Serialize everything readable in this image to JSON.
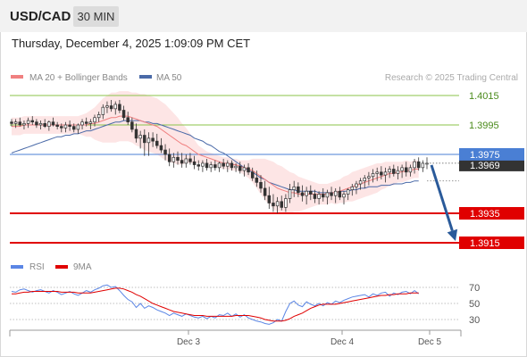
{
  "header": {
    "symbol": "USD/CAD",
    "timeframe": "30 MIN",
    "timestamp": "Thursday, December 4, 2025 1:09:09 PM CET"
  },
  "legend": {
    "bollinger": "MA 20 + Bollinger Bands",
    "ma50": "MA 50",
    "rsi": "RSI",
    "rsi_ma": "9MA"
  },
  "credit": "Research © 2025 Trading Central",
  "colors": {
    "bollinger": "#f08080",
    "bollinger_fill": "#fde0e0",
    "ma50": "#4a6aa8",
    "resistance": "#8bc34a",
    "support": "#e00000",
    "pivot": "#4a7fd4",
    "price_box": "#333333",
    "arrow": "#2a5a9a",
    "rsi": "#5b86e5",
    "rsi_ma": "#e00000"
  },
  "chart_data": [
    {
      "type": "candlestick",
      "title": "USD/CAD",
      "ylim": [
        1.3908,
        1.4026
      ],
      "x_tick_labels": [
        "Dec 3",
        "Dec 4",
        "Dec 5"
      ],
      "levels": [
        {
          "value": 1.4015,
          "label": "1.4015",
          "kind": "resistance"
        },
        {
          "value": 1.3995,
          "label": "1.3995",
          "kind": "resistance"
        },
        {
          "value": 1.3975,
          "label": "1.3975",
          "kind": "pivot"
        },
        {
          "value": 1.3935,
          "label": "1.3935",
          "kind": "support"
        },
        {
          "value": 1.3915,
          "label": "1.3915",
          "kind": "support"
        }
      ],
      "last_price": {
        "value": 1.3969,
        "label": "1.3969"
      },
      "forecast_arrow": {
        "from": 1.3969,
        "to": 1.3915,
        "direction": "down"
      },
      "candles": [
        [
          1.3997,
          1.3999,
          1.3994,
          1.3996
        ],
        [
          1.3996,
          1.3999,
          1.3993,
          1.3997
        ],
        [
          1.3997,
          1.4,
          1.3994,
          1.3995
        ],
        [
          1.3995,
          1.3998,
          1.3992,
          1.3996
        ],
        [
          1.3996,
          1.4,
          1.3993,
          1.3998
        ],
        [
          1.3998,
          1.4001,
          1.3995,
          1.3997
        ],
        [
          1.3997,
          1.3999,
          1.3993,
          1.3995
        ],
        [
          1.3995,
          1.3998,
          1.3992,
          1.3996
        ],
        [
          1.3996,
          1.3999,
          1.3993,
          1.3994
        ],
        [
          1.3994,
          1.3998,
          1.3991,
          1.3997
        ],
        [
          1.3997,
          1.4,
          1.3994,
          1.3995
        ],
        [
          1.3995,
          1.3997,
          1.3992,
          1.3994
        ],
        [
          1.3994,
          1.3996,
          1.399,
          1.3993
        ],
        [
          1.3993,
          1.3997,
          1.399,
          1.3995
        ],
        [
          1.3995,
          1.3998,
          1.3991,
          1.3994
        ],
        [
          1.3994,
          1.3996,
          1.399,
          1.3992
        ],
        [
          1.3992,
          1.3996,
          1.3989,
          1.3995
        ],
        [
          1.3995,
          1.3999,
          1.3992,
          1.3997
        ],
        [
          1.3997,
          1.4,
          1.3994,
          1.3996
        ],
        [
          1.3996,
          1.3999,
          1.3992,
          1.3997
        ],
        [
          1.3997,
          1.4002,
          1.3994,
          1.4
        ],
        [
          1.4,
          1.4004,
          1.3997,
          1.4002
        ],
        [
          1.4002,
          1.4009,
          1.3999,
          1.4007
        ],
        [
          1.4007,
          1.4011,
          1.4003,
          1.4008
        ],
        [
          1.4008,
          1.4012,
          1.4004,
          1.4006
        ],
        [
          1.4006,
          1.4011,
          1.4002,
          1.4009
        ],
        [
          1.4009,
          1.4012,
          1.4003,
          1.4005
        ],
        [
          1.4005,
          1.4008,
          1.3998,
          1.4
        ],
        [
          1.4,
          1.4004,
          1.3995,
          1.3997
        ],
        [
          1.3997,
          1.4,
          1.399,
          1.3992
        ],
        [
          1.3992,
          1.3996,
          1.3983,
          1.3986
        ],
        [
          1.3986,
          1.3991,
          1.3979,
          1.3988
        ],
        [
          1.3988,
          1.3992,
          1.3974,
          1.3983
        ],
        [
          1.3983,
          1.399,
          1.3974,
          1.3986
        ],
        [
          1.3986,
          1.399,
          1.398,
          1.3984
        ],
        [
          1.3984,
          1.3989,
          1.3979,
          1.3981
        ],
        [
          1.3981,
          1.3986,
          1.3976,
          1.3978
        ],
        [
          1.3978,
          1.3982,
          1.3971,
          1.3975
        ],
        [
          1.3975,
          1.3979,
          1.3967,
          1.397
        ],
        [
          1.397,
          1.3976,
          1.3966,
          1.3973
        ],
        [
          1.3973,
          1.3977,
          1.3968,
          1.3971
        ],
        [
          1.3971,
          1.3976,
          1.3966,
          1.3969
        ],
        [
          1.3969,
          1.3975,
          1.3966,
          1.3972
        ],
        [
          1.3972,
          1.3976,
          1.3968,
          1.397
        ],
        [
          1.397,
          1.3974,
          1.3965,
          1.3968
        ],
        [
          1.3968,
          1.3971,
          1.3964,
          1.3967
        ],
        [
          1.3967,
          1.3971,
          1.3963,
          1.3969
        ],
        [
          1.3969,
          1.3972,
          1.3964,
          1.3966
        ],
        [
          1.3966,
          1.397,
          1.3963,
          1.3968
        ],
        [
          1.3968,
          1.3971,
          1.3964,
          1.3966
        ],
        [
          1.3966,
          1.397,
          1.3963,
          1.3969
        ],
        [
          1.3969,
          1.3972,
          1.3965,
          1.3967
        ],
        [
          1.3967,
          1.3971,
          1.3963,
          1.3969
        ],
        [
          1.3969,
          1.3971,
          1.3964,
          1.3966
        ],
        [
          1.3966,
          1.3969,
          1.3963,
          1.3967
        ],
        [
          1.3967,
          1.397,
          1.3962,
          1.3964
        ],
        [
          1.3964,
          1.3968,
          1.396,
          1.3966
        ],
        [
          1.3966,
          1.3969,
          1.3961,
          1.3963
        ],
        [
          1.3963,
          1.3966,
          1.3957,
          1.3959
        ],
        [
          1.3959,
          1.3964,
          1.3953,
          1.3956
        ],
        [
          1.3956,
          1.3961,
          1.3949,
          1.3952
        ],
        [
          1.3952,
          1.3957,
          1.3944,
          1.3947
        ],
        [
          1.3947,
          1.3953,
          1.3938,
          1.3942
        ],
        [
          1.3942,
          1.3948,
          1.3936,
          1.394
        ],
        [
          1.394,
          1.3946,
          1.3935,
          1.3943
        ],
        [
          1.3943,
          1.3947,
          1.3937,
          1.3939
        ],
        [
          1.3939,
          1.3948,
          1.3936,
          1.3945
        ],
        [
          1.3945,
          1.3955,
          1.3942,
          1.3951
        ],
        [
          1.3951,
          1.3957,
          1.3946,
          1.3953
        ],
        [
          1.3953,
          1.3956,
          1.3946,
          1.3949
        ],
        [
          1.3949,
          1.3954,
          1.3943,
          1.3947
        ],
        [
          1.3947,
          1.3953,
          1.3941,
          1.395
        ],
        [
          1.395,
          1.3954,
          1.3944,
          1.3948
        ],
        [
          1.3948,
          1.3951,
          1.3942,
          1.3945
        ],
        [
          1.3945,
          1.395,
          1.3941,
          1.3948
        ],
        [
          1.3948,
          1.3952,
          1.3943,
          1.3946
        ],
        [
          1.3946,
          1.3951,
          1.3941,
          1.3949
        ],
        [
          1.3949,
          1.3953,
          1.3944,
          1.3947
        ],
        [
          1.3947,
          1.3952,
          1.3942,
          1.395
        ],
        [
          1.395,
          1.3953,
          1.3944,
          1.3946
        ],
        [
          1.3946,
          1.395,
          1.3941,
          1.3948
        ],
        [
          1.3948,
          1.3952,
          1.3944,
          1.3951
        ],
        [
          1.3951,
          1.3955,
          1.3947,
          1.3953
        ],
        [
          1.3953,
          1.3957,
          1.3948,
          1.3955
        ],
        [
          1.3955,
          1.3959,
          1.3951,
          1.3957
        ],
        [
          1.3957,
          1.3961,
          1.3952,
          1.3959
        ],
        [
          1.3959,
          1.3963,
          1.3954,
          1.396
        ],
        [
          1.396,
          1.3965,
          1.3956,
          1.3962
        ],
        [
          1.3962,
          1.3966,
          1.3957,
          1.3963
        ],
        [
          1.3963,
          1.3967,
          1.3958,
          1.3961
        ],
        [
          1.3961,
          1.3966,
          1.3956,
          1.3963
        ],
        [
          1.3963,
          1.3967,
          1.3959,
          1.3965
        ],
        [
          1.3965,
          1.3968,
          1.396,
          1.3962
        ],
        [
          1.3962,
          1.3967,
          1.3958,
          1.3964
        ],
        [
          1.3964,
          1.3968,
          1.3959,
          1.3966
        ],
        [
          1.3966,
          1.397,
          1.396,
          1.3963
        ],
        [
          1.3963,
          1.3968,
          1.396,
          1.3966
        ],
        [
          1.3966,
          1.3972,
          1.3962,
          1.397
        ],
        [
          1.397,
          1.3973,
          1.3964,
          1.3966
        ],
        [
          1.3966,
          1.3971,
          1.3963,
          1.3969
        ],
        [
          1.3969,
          1.3973,
          1.3965,
          1.3969
        ]
      ],
      "ma20": [
        1.3994,
        1.3994,
        1.3994,
        1.3995,
        1.3995,
        1.3995,
        1.3995,
        1.3995,
        1.3995,
        1.3995,
        1.3995,
        1.3995,
        1.3995,
        1.3995,
        1.3995,
        1.3995,
        1.3995,
        1.3995,
        1.3995,
        1.3996,
        1.3996,
        1.3997,
        1.3998,
        1.3999,
        1.4,
        1.4,
        1.4001,
        1.4001,
        1.4001,
        1.4,
        1.3999,
        1.3998,
        1.3997,
        1.3996,
        1.3995,
        1.3994,
        1.3992,
        1.399,
        1.3988,
        1.3986,
        1.3984,
        1.3982,
        1.3981,
        1.3979,
        1.3977,
        1.3975,
        1.3974,
        1.3973,
        1.3972,
        1.3971,
        1.397,
        1.3969,
        1.3969,
        1.3968,
        1.3968,
        1.3967,
        1.3966,
        1.3965,
        1.3964,
        1.3962,
        1.396,
        1.3958,
        1.3956,
        1.3954,
        1.3952,
        1.3951,
        1.395,
        1.3949,
        1.3949,
        1.3948,
        1.3948,
        1.3948,
        1.3948,
        1.3948,
        1.3948,
        1.3948,
        1.3948,
        1.3949,
        1.3949,
        1.395,
        1.3951,
        1.3952,
        1.3953,
        1.3954,
        1.3955,
        1.3956,
        1.3957,
        1.3958,
        1.3959,
        1.396,
        1.3961,
        1.3962,
        1.3962,
        1.3963,
        1.3963,
        1.3964,
        1.3964,
        1.3965,
        1.3965
      ],
      "bb_width": [
        0.0006,
        0.0006,
        0.0006,
        0.0006,
        0.0006,
        0.0006,
        0.0006,
        0.0006,
        0.0006,
        0.0006,
        0.0006,
        0.0006,
        0.0006,
        0.0006,
        0.0006,
        0.0006,
        0.0006,
        0.0007,
        0.0008,
        0.0009,
        0.0011,
        0.0013,
        0.0015,
        0.0016,
        0.0017,
        0.0017,
        0.0017,
        0.0017,
        0.0017,
        0.0017,
        0.0018,
        0.0018,
        0.0019,
        0.0019,
        0.0019,
        0.0019,
        0.0019,
        0.0019,
        0.0018,
        0.0017,
        0.0016,
        0.0014,
        0.0012,
        0.001,
        0.0008,
        0.0006,
        0.0005,
        0.0004,
        0.0004,
        0.0004,
        0.0004,
        0.0004,
        0.0004,
        0.0004,
        0.0004,
        0.0004,
        0.0005,
        0.0006,
        0.0008,
        0.001,
        0.0012,
        0.0014,
        0.0015,
        0.0016,
        0.0016,
        0.0016,
        0.0015,
        0.0014,
        0.0013,
        0.0012,
        0.0011,
        0.001,
        0.0009,
        0.0008,
        0.0007,
        0.0007,
        0.0007,
        0.0007,
        0.0008,
        0.0008,
        0.0009,
        0.0009,
        0.001,
        0.001,
        0.001,
        0.001,
        0.001,
        0.001,
        0.001,
        0.0009,
        0.0009,
        0.0008,
        0.0008,
        0.0007,
        0.0007,
        0.0007,
        0.0006,
        0.0006,
        0.0006
      ],
      "ma50": [
        1.3976,
        1.3977,
        1.3978,
        1.3979,
        1.398,
        1.3981,
        1.3982,
        1.3983,
        1.3984,
        1.3985,
        1.3986,
        1.3987,
        1.3987,
        1.3988,
        1.3988,
        1.3989,
        1.3989,
        1.399,
        1.3991,
        1.3991,
        1.3992,
        1.3993,
        1.3994,
        1.3995,
        1.3996,
        1.3997,
        1.3997,
        1.3998,
        1.3998,
        1.3998,
        1.3998,
        1.3998,
        1.3997,
        1.3997,
        1.3996,
        1.3996,
        1.3995,
        1.3994,
        1.3993,
        1.3992,
        1.3991,
        1.399,
        1.3989,
        1.3988,
        1.3986,
        1.3985,
        1.3984,
        1.3982,
        1.3981,
        1.3979,
        1.3977,
        1.3976,
        1.3974,
        1.3972,
        1.397,
        1.3968,
        1.3966,
        1.3964,
        1.3963,
        1.3961,
        1.3959,
        1.3958,
        1.3956,
        1.3955,
        1.3954,
        1.3953,
        1.3952,
        1.3951,
        1.3951,
        1.395,
        1.395,
        1.395,
        1.395,
        1.395,
        1.3949,
        1.3949,
        1.3949,
        1.3949,
        1.3949,
        1.395,
        1.395,
        1.395,
        1.3951,
        1.3951,
        1.3952,
        1.3952,
        1.3953,
        1.3953,
        1.3953,
        1.3954,
        1.3954,
        1.3954,
        1.3955,
        1.3955,
        1.3955,
        1.3956,
        1.3956,
        1.3957,
        1.3957
      ]
    },
    {
      "type": "line",
      "title": "RSI",
      "ylim": [
        20,
        80
      ],
      "y_ticks": [
        30,
        50,
        70
      ],
      "guides": [
        30,
        50,
        70
      ],
      "series": [
        {
          "name": "RSI",
          "values": [
            65,
            64,
            67,
            68,
            66,
            64,
            66,
            67,
            65,
            63,
            66,
            64,
            61,
            63,
            65,
            62,
            60,
            63,
            66,
            64,
            67,
            69,
            72,
            73,
            70,
            71,
            66,
            60,
            55,
            52,
            45,
            50,
            44,
            47,
            45,
            42,
            40,
            38,
            35,
            38,
            36,
            34,
            37,
            35,
            33,
            32,
            34,
            31,
            34,
            32,
            36,
            35,
            38,
            34,
            37,
            33,
            36,
            32,
            30,
            28,
            27,
            25,
            24,
            26,
            30,
            28,
            40,
            50,
            53,
            48,
            46,
            52,
            49,
            47,
            50,
            47,
            51,
            49,
            53,
            51,
            54,
            56,
            58,
            59,
            60,
            61,
            58,
            62,
            60,
            63,
            64,
            59,
            63,
            61,
            64,
            65,
            62,
            66,
            62
          ]
        },
        {
          "name": "9MA",
          "values": [
            62,
            62,
            63,
            64,
            64,
            65,
            65,
            65,
            65,
            65,
            65,
            65,
            64,
            64,
            64,
            64,
            63,
            63,
            63,
            63,
            64,
            65,
            66,
            67,
            68,
            69,
            69,
            68,
            66,
            64,
            61,
            59,
            56,
            53,
            50,
            48,
            46,
            44,
            42,
            40,
            39,
            38,
            37,
            36,
            35,
            35,
            35,
            34,
            34,
            34,
            34,
            34,
            34,
            34,
            35,
            35,
            35,
            35,
            34,
            33,
            32,
            30,
            29,
            28,
            28,
            28,
            29,
            31,
            34,
            36,
            38,
            41,
            44,
            46,
            48,
            49,
            49,
            49,
            49,
            50,
            51,
            52,
            53,
            54,
            55,
            56,
            57,
            58,
            59,
            60,
            60,
            61,
            61,
            62,
            62,
            62,
            63,
            63,
            63
          ]
        }
      ]
    }
  ]
}
